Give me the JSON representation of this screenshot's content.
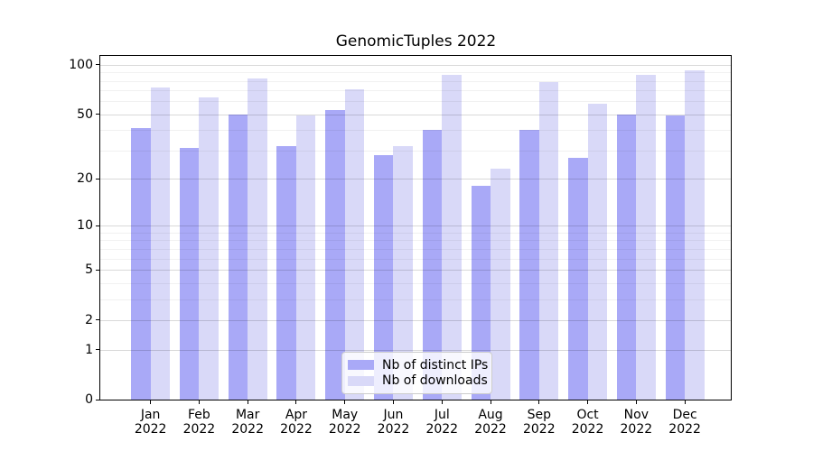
{
  "chart_data": {
    "type": "bar",
    "title": "GenomicTuples 2022",
    "categories": [
      "Jan 2022",
      "Feb 2022",
      "Mar 2022",
      "Apr 2022",
      "May 2022",
      "Jun 2022",
      "Jul 2022",
      "Aug 2022",
      "Sep 2022",
      "Oct 2022",
      "Nov 2022",
      "Dec 2022"
    ],
    "month_labels": [
      "Jan",
      "Feb",
      "Mar",
      "Apr",
      "May",
      "Jun",
      "Jul",
      "Aug",
      "Sep",
      "Oct",
      "Nov",
      "Dec"
    ],
    "year_label": "2022",
    "series": [
      {
        "name": "Nb of distinct IPs",
        "color": "#a9a9f7",
        "values": [
          41,
          31,
          50,
          32,
          53,
          28,
          40,
          18,
          40,
          27,
          50,
          49
        ]
      },
      {
        "name": "Nb of downloads",
        "color": "#d9d9f8",
        "values": [
          73,
          63,
          83,
          49,
          71,
          32,
          87,
          23,
          79,
          58,
          87,
          92
        ]
      }
    ],
    "xlabel": "",
    "ylabel": "",
    "yscale": "log1p",
    "ylim": [
      0,
      113
    ],
    "y_ticks": [
      0,
      1,
      2,
      5,
      10,
      20,
      50,
      100
    ],
    "y_minor_gridlines": [
      3,
      4,
      6,
      7,
      8,
      9,
      30,
      40,
      60,
      70,
      80,
      90
    ],
    "grid": true,
    "legend": {
      "position": "lower center",
      "items": [
        "Nb of distinct IPs",
        "Nb of downloads"
      ]
    }
  }
}
